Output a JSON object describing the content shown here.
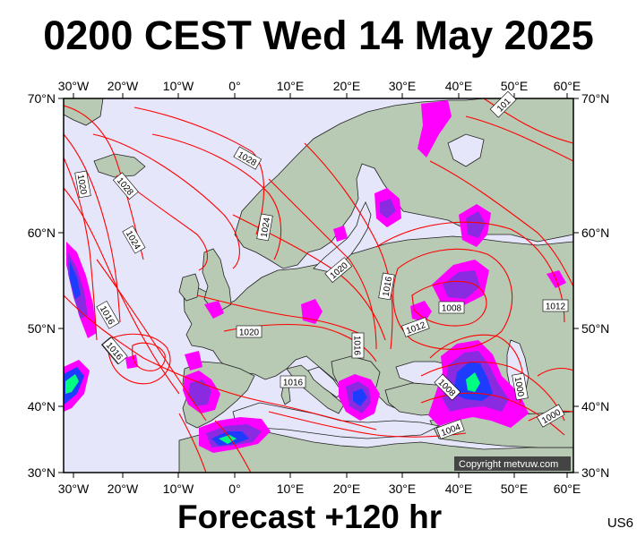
{
  "title": "0200 CEST Wed 14 May 2025",
  "subtitle": "Forecast +120 hr",
  "code": "US6",
  "copyright": "Copyright metvuw.com",
  "colors": {
    "ocean": "#e6e6fa",
    "land": "#b8c9b4",
    "isobar": "#ff0000",
    "precip_light": "#ff00ff",
    "precip_medium": "#8a2be2",
    "precip_heavy": "#1e3cff",
    "precip_extreme": "#00ff80"
  },
  "axes": {
    "lon_labels": [
      "30°W",
      "20°W",
      "10°W",
      "0°",
      "10°E",
      "20°E",
      "30°E",
      "40°E",
      "50°E",
      "60°E"
    ],
    "lat_labels": [
      "70°N",
      "60°N",
      "50°N",
      "40°N",
      "30°N"
    ]
  },
  "isobar_labels": [
    "1028",
    "1020",
    "1028",
    "1024",
    "1016",
    "1016",
    "1024",
    "1020",
    "1016",
    "1012",
    "1008",
    "1012",
    "1016",
    "1016",
    "1020",
    "1016",
    "1008",
    "1004",
    "1000",
    "1000",
    "101"
  ]
}
